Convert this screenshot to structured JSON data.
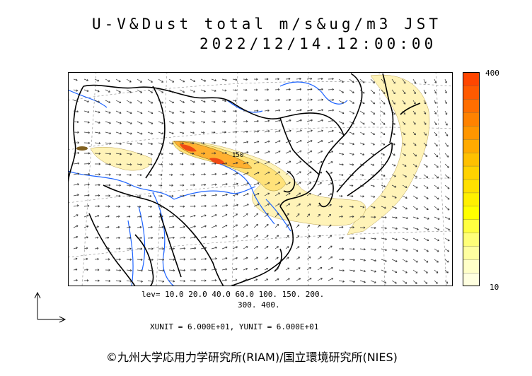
{
  "title": {
    "line1": "U-V&Dust total m/s&ug/m3 JST",
    "line2": "2022/12/14.12:00:00"
  },
  "legend": {
    "max_label": "400",
    "min_label": "10",
    "colors": [
      "#FFFFE0",
      "#FFFFC8",
      "#FFFFA0",
      "#FFFF78",
      "#FFFF40",
      "#FFFF00",
      "#FFF000",
      "#FFE000",
      "#FFD200",
      "#FFC000",
      "#FFAA00",
      "#FF9600",
      "#FF8200",
      "#FF6E00",
      "#FF5A00",
      "#FF4600"
    ]
  },
  "levels": {
    "line1": "lev= 10.0 20.0 40.0 60.0 100. 150. 200.",
    "line2": "300. 400."
  },
  "contour_label": "150",
  "units": "XUNIT = 6.000E+01, YUNIT = 6.000E+01",
  "credit": "©九州大学応用力学研究所(RIAM)/国立環境研究所(NIES)",
  "colors": {
    "coast": "#000000",
    "river": "#1E64FF",
    "dust_light": "#FFF3B8",
    "dust_mid": "#FFD84A",
    "dust_high": "#FF9A1E",
    "dust_peak": "#F04A14",
    "wind": "#333333",
    "grid": "#888888"
  }
}
